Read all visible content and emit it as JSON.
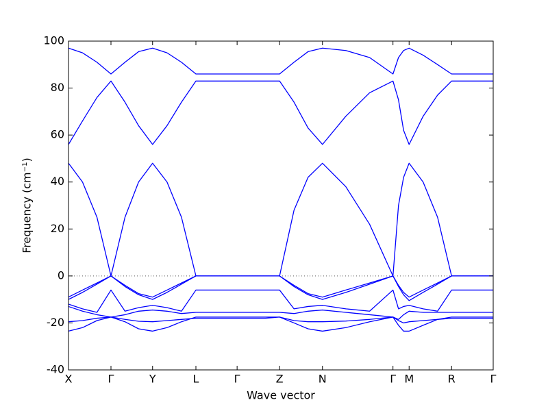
{
  "chart_data": {
    "type": "line",
    "xlabel": "Wave vector",
    "ylabel": "Frequency (cm⁻¹)",
    "xlim": [
      0,
      1
    ],
    "ylim": [
      -40,
      100
    ],
    "yticks": [
      -40,
      -20,
      0,
      20,
      40,
      60,
      80,
      100
    ],
    "xticks": [
      {
        "value": 0,
        "label": "X"
      },
      {
        "value": 0.1,
        "label": "Γ"
      },
      {
        "value": 0.198,
        "label": "Y"
      },
      {
        "value": 0.3,
        "label": "L"
      },
      {
        "value": 0.397,
        "label": "Γ"
      },
      {
        "value": 0.497,
        "label": "Z"
      },
      {
        "value": 0.598,
        "label": "N"
      },
      {
        "value": 0.764,
        "label": "Γ"
      },
      {
        "value": 0.802,
        "label": "M"
      },
      {
        "value": 0.902,
        "label": "R"
      },
      {
        "value": 1,
        "label": "Γ"
      }
    ],
    "hline": 0,
    "x": [
      0,
      0.033,
      0.067,
      0.1,
      0.133,
      0.165,
      0.198,
      0.232,
      0.266,
      0.3,
      0.332,
      0.365,
      0.397,
      0.43,
      0.464,
      0.497,
      0.531,
      0.564,
      0.598,
      0.653,
      0.709,
      0.764,
      0.777,
      0.789,
      0.802,
      0.835,
      0.869,
      0.902,
      0.935,
      0.967,
      1
    ],
    "series": [
      {
        "color": "#0000ff",
        "values": [
          97,
          95,
          91,
          86,
          91,
          95.5,
          97,
          95,
          91,
          86,
          86,
          86,
          86,
          86,
          86,
          86,
          91,
          95.5,
          97,
          96,
          93,
          86,
          93,
          96,
          97,
          94,
          90,
          86,
          86,
          86,
          86
        ]
      },
      {
        "color": "#0000ff",
        "values": [
          56,
          66,
          76,
          83,
          74,
          64,
          56,
          64,
          74,
          83,
          83,
          83,
          83,
          83,
          83,
          83,
          74,
          63,
          56,
          68,
          78,
          83,
          75,
          62,
          56,
          68,
          77,
          83,
          83,
          83,
          83
        ]
      },
      {
        "color": "#0000ff",
        "values": [
          48,
          40,
          25,
          0,
          25,
          40,
          48,
          40,
          25,
          0,
          0,
          0,
          0,
          0,
          0,
          0,
          28,
          42,
          48,
          38,
          22,
          0,
          30,
          42,
          48,
          40,
          25,
          0,
          0,
          0,
          0
        ]
      },
      {
        "color": "#0000ff",
        "values": [
          -9,
          -6,
          -3,
          0,
          -4,
          -7.5,
          -9,
          -6,
          -3,
          0,
          0,
          0,
          0,
          0,
          0,
          0,
          -4,
          -7.5,
          -9,
          -6,
          -3,
          0,
          -4,
          -7,
          -9,
          -6,
          -3,
          0,
          0,
          0,
          0
        ]
      },
      {
        "color": "#0000ff",
        "values": [
          -10,
          -7,
          -3.5,
          0,
          -4.5,
          -8,
          -10,
          -7,
          -3.5,
          0,
          0,
          0,
          0,
          0,
          0,
          0,
          -4.5,
          -8,
          -10,
          -7,
          -3.5,
          0,
          -4.5,
          -8,
          -10.5,
          -7,
          -3.5,
          0,
          0,
          0,
          0
        ]
      },
      {
        "color": "#0000ff",
        "values": [
          -12,
          -14,
          -15.5,
          -6,
          -15,
          -13.5,
          -12.5,
          -13.5,
          -15,
          -6,
          -6,
          -6,
          -6,
          -6,
          -6,
          -6,
          -14,
          -13,
          -12.5,
          -14,
          -15,
          -6,
          -14,
          -13,
          -12.5,
          -14,
          -15,
          -6,
          -6,
          -6,
          -6
        ]
      },
      {
        "color": "#0000ff",
        "values": [
          -13,
          -15,
          -16.5,
          -17.5,
          -16.5,
          -15,
          -14.5,
          -15,
          -16,
          -15.5,
          -15.5,
          -15.5,
          -15.5,
          -15.5,
          -15.5,
          -15.5,
          -16,
          -15,
          -14.5,
          -15.5,
          -16.5,
          -17.5,
          -18.5,
          -16.5,
          -15,
          -15.5,
          -15.5,
          -15.5,
          -15.5,
          -15.5,
          -15.5
        ]
      },
      {
        "color": "#0000ff",
        "values": [
          -19.5,
          -19,
          -18,
          -17.5,
          -18.5,
          -19.3,
          -19.5,
          -19,
          -18.5,
          -18,
          -18,
          -18,
          -18,
          -18,
          -18,
          -17.5,
          -19,
          -19.5,
          -19.5,
          -19.2,
          -18.5,
          -17.5,
          -19,
          -20,
          -19.5,
          -19,
          -18.5,
          -18,
          -18,
          -18,
          -18
        ]
      },
      {
        "color": "#0000ff",
        "values": [
          -23.5,
          -22,
          -19,
          -17.5,
          -19.5,
          -22.5,
          -23.5,
          -22,
          -19.5,
          -17.5,
          -17.5,
          -17.5,
          -17.5,
          -17.5,
          -17.5,
          -17.5,
          -20,
          -22.5,
          -23.5,
          -22,
          -19.5,
          -17.5,
          -21,
          -23.5,
          -23.5,
          -21,
          -18.5,
          -17.5,
          -17.5,
          -17.5,
          -17.5
        ]
      }
    ]
  }
}
